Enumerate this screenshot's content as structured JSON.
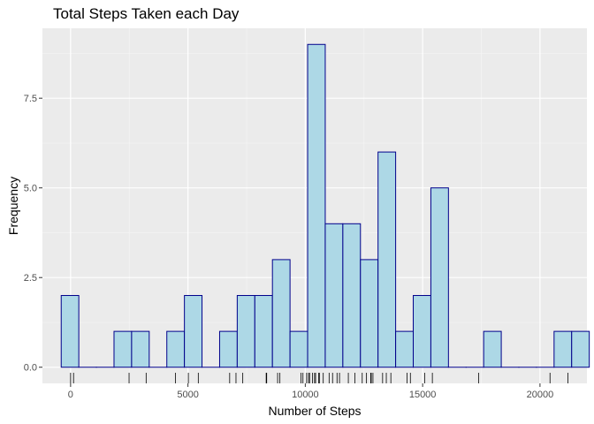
{
  "chart_data": {
    "type": "bar",
    "title": "Total Steps Taken each Day",
    "xlabel": "Number of Steps",
    "ylabel": "Frequency",
    "xlim": [
      -1200,
      22000
    ],
    "ylim": [
      -0.45,
      9.45
    ],
    "x_ticks": [
      0,
      5000,
      10000,
      15000,
      20000
    ],
    "x_tick_labels": [
      "0",
      "5000",
      "10000",
      "15000",
      "20000"
    ],
    "y_ticks": [
      0,
      2.5,
      5,
      7.5
    ],
    "y_tick_labels": [
      "0.0",
      "2.5",
      "5.0",
      "7.5"
    ],
    "bins": [
      {
        "x0": -400,
        "x1": 350,
        "count": 2
      },
      {
        "x0": 350,
        "x1": 1100,
        "count": 0
      },
      {
        "x0": 1100,
        "x1": 1850,
        "count": 0
      },
      {
        "x0": 1850,
        "x1": 2600,
        "count": 1
      },
      {
        "x0": 2600,
        "x1": 3350,
        "count": 1
      },
      {
        "x0": 3350,
        "x1": 4100,
        "count": 0
      },
      {
        "x0": 4100,
        "x1": 4850,
        "count": 1
      },
      {
        "x0": 4850,
        "x1": 5600,
        "count": 2
      },
      {
        "x0": 5600,
        "x1": 6350,
        "count": 0
      },
      {
        "x0": 6350,
        "x1": 7100,
        "count": 1
      },
      {
        "x0": 7100,
        "x1": 7850,
        "count": 2
      },
      {
        "x0": 7850,
        "x1": 8600,
        "count": 2
      },
      {
        "x0": 8600,
        "x1": 9350,
        "count": 3
      },
      {
        "x0": 9350,
        "x1": 10100,
        "count": 1
      },
      {
        "x0": 10100,
        "x1": 10850,
        "count": 9
      },
      {
        "x0": 10850,
        "x1": 11600,
        "count": 4
      },
      {
        "x0": 11600,
        "x1": 12350,
        "count": 4
      },
      {
        "x0": 12350,
        "x1": 13100,
        "count": 3
      },
      {
        "x0": 13100,
        "x1": 13850,
        "count": 6
      },
      {
        "x0": 13850,
        "x1": 14600,
        "count": 1
      },
      {
        "x0": 14600,
        "x1": 15350,
        "count": 2
      },
      {
        "x0": 15350,
        "x1": 16100,
        "count": 5
      },
      {
        "x0": 16100,
        "x1": 16850,
        "count": 0
      },
      {
        "x0": 16850,
        "x1": 17600,
        "count": 0
      },
      {
        "x0": 17600,
        "x1": 18350,
        "count": 1
      },
      {
        "x0": 18350,
        "x1": 19100,
        "count": 0
      },
      {
        "x0": 19100,
        "x1": 19850,
        "count": 0
      },
      {
        "x0": 19850,
        "x1": 20600,
        "count": 0
      },
      {
        "x0": 20600,
        "x1": 21350,
        "count": 1
      },
      {
        "x0": 21350,
        "x1": 22100,
        "count": 1
      }
    ],
    "rug": [
      0,
      126,
      2492,
      3219,
      4472,
      5018,
      5441,
      6778,
      7047,
      7336,
      8334,
      8355,
      8821,
      8918,
      9819,
      9900,
      10056,
      10139,
      10183,
      10304,
      10395,
      10439,
      10571,
      10600,
      10765,
      11015,
      11162,
      11352,
      11458,
      11834,
      12116,
      12426,
      12608,
      12787,
      12811,
      12883,
      13294,
      13452,
      13646,
      14339,
      14478,
      15084,
      15414,
      17382,
      20427,
      21194
    ],
    "colors": {
      "bar_fill": "#add8e6",
      "bar_stroke": "#00008b",
      "panel_bg": "#ebebeb",
      "grid_major": "#ffffff",
      "grid_minor": "#f5f5f5"
    },
    "grid": true,
    "legend": "none"
  }
}
